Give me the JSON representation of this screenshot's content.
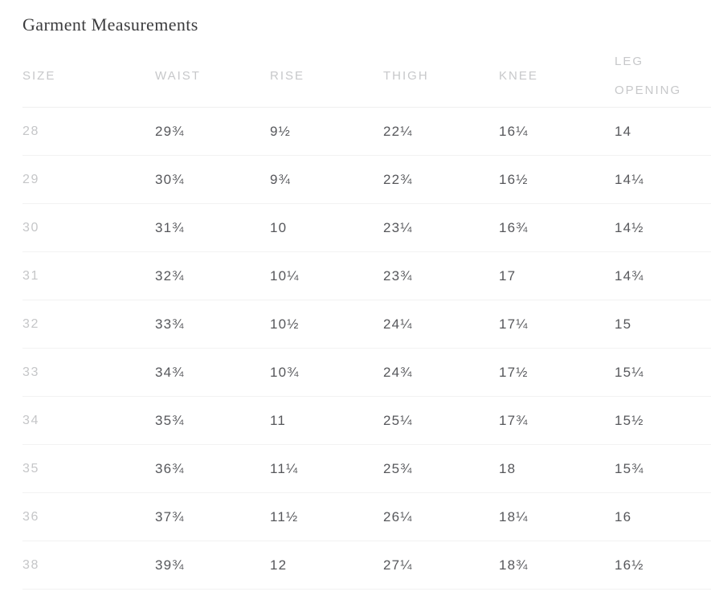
{
  "page": {
    "title": "Garment Measurements"
  },
  "table": {
    "headers": [
      "SIZE",
      "WAIST",
      "RISE",
      "THIGH",
      "KNEE",
      "LEG OPENING"
    ],
    "rows": [
      [
        "28",
        "29¾",
        "9½",
        "22¼",
        "16¼",
        "14"
      ],
      [
        "29",
        "30¾",
        "9¾",
        "22¾",
        "16½",
        "14¼"
      ],
      [
        "30",
        "31¾",
        "10",
        "23¼",
        "16¾",
        "14½"
      ],
      [
        "31",
        "32¾",
        "10¼",
        "23¾",
        "17",
        "14¾"
      ],
      [
        "32",
        "33¾",
        "10½",
        "24¼",
        "17¼",
        "15"
      ],
      [
        "33",
        "34¾",
        "10¾",
        "24¾",
        "17½",
        "15¼"
      ],
      [
        "34",
        "35¾",
        "11",
        "25¼",
        "17¾",
        "15½"
      ],
      [
        "35",
        "36¾",
        "11¼",
        "25¾",
        "18",
        "15¾"
      ],
      [
        "36",
        "37¾",
        "11½",
        "26¼",
        "18¼",
        "16"
      ],
      [
        "38",
        "39¾",
        "12",
        "27¼",
        "18¾",
        "16½"
      ]
    ]
  },
  "colors": {
    "title_text": "#3c3c3e",
    "header_text": "#c7c8ca",
    "size_column_text": "#c5c6c8",
    "value_text": "#56575b",
    "divider": "#f0f0f0",
    "background": "#ffffff"
  },
  "chart_data": {
    "type": "table",
    "title": "Garment Measurements",
    "columns": [
      "SIZE",
      "WAIST",
      "RISE",
      "THIGH",
      "KNEE",
      "LEG OPENING"
    ],
    "rows": [
      {
        "size": 28,
        "waist": 29.75,
        "rise": 9.5,
        "thigh": 22.25,
        "knee": 16.25,
        "leg_opening": 14
      },
      {
        "size": 29,
        "waist": 30.75,
        "rise": 9.75,
        "thigh": 22.75,
        "knee": 16.5,
        "leg_opening": 14.25
      },
      {
        "size": 30,
        "waist": 31.75,
        "rise": 10,
        "thigh": 23.25,
        "knee": 16.75,
        "leg_opening": 14.5
      },
      {
        "size": 31,
        "waist": 32.75,
        "rise": 10.25,
        "thigh": 23.75,
        "knee": 17,
        "leg_opening": 14.75
      },
      {
        "size": 32,
        "waist": 33.75,
        "rise": 10.5,
        "thigh": 24.25,
        "knee": 17.25,
        "leg_opening": 15
      },
      {
        "size": 33,
        "waist": 34.75,
        "rise": 10.75,
        "thigh": 24.75,
        "knee": 17.5,
        "leg_opening": 15.25
      },
      {
        "size": 34,
        "waist": 35.75,
        "rise": 11,
        "thigh": 25.25,
        "knee": 17.75,
        "leg_opening": 15.5
      },
      {
        "size": 35,
        "waist": 36.75,
        "rise": 11.25,
        "thigh": 25.75,
        "knee": 18,
        "leg_opening": 15.75
      },
      {
        "size": 36,
        "waist": 37.75,
        "rise": 11.5,
        "thigh": 26.25,
        "knee": 18.25,
        "leg_opening": 16
      },
      {
        "size": 38,
        "waist": 39.75,
        "rise": 12,
        "thigh": 27.25,
        "knee": 18.75,
        "leg_opening": 16.5
      }
    ],
    "units": "inches"
  }
}
